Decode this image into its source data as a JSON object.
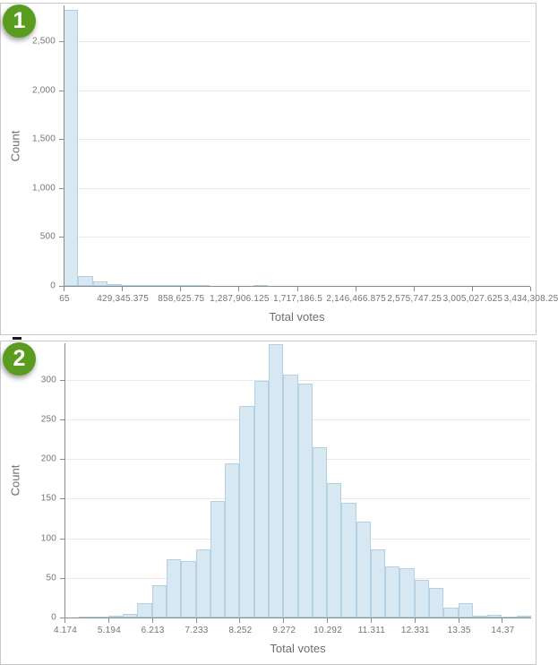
{
  "badges": [
    {
      "label": "1"
    },
    {
      "label": "2"
    }
  ],
  "artifact": {
    "dash": true
  },
  "colors": {
    "badge_green": "#5a9c1e",
    "bar_fill": "#d8e8f3",
    "bar_stroke": "#b4d1e4",
    "axis": "#8c8c8c",
    "grid": "#e9e9e9",
    "tick_text": "#757575",
    "title_text": "#6e6e6e",
    "panel_border": "#c9c9c9"
  },
  "chart_data": [
    {
      "type": "bar",
      "title": "",
      "xlabel": "Total votes",
      "ylabel": "Count",
      "x_start_value": 65,
      "bin_width_value": 107320.094,
      "x_tick_labels": [
        "65",
        "429,345.375",
        "858,625.75",
        "1,287,906.125",
        "1,717,186.5",
        "2,146,466.875",
        "2,575,747.25",
        "3,005,027.625",
        "3,434,308.25"
      ],
      "ticks_every_n_bins": 4,
      "y_tick_values": [
        0,
        500,
        1000,
        1500,
        2000,
        2500
      ],
      "y_tick_labels": [
        "0",
        "500",
        "1,000",
        "1,500",
        "2,000",
        "2,500"
      ],
      "ylim": [
        0,
        2870
      ],
      "grid": "horizontal",
      "legend": "none",
      "counts": [
        2820,
        99,
        47,
        18,
        6,
        3,
        2,
        2,
        1,
        1,
        0,
        0,
        0,
        1,
        0,
        0,
        0,
        0,
        0,
        0,
        0,
        0,
        0,
        0,
        0,
        0,
        0,
        0,
        0,
        0,
        0,
        0
      ]
    },
    {
      "type": "bar",
      "title": "",
      "xlabel": "Total votes",
      "ylabel": "Count",
      "x_start_value": 4.174,
      "bin_width_value": 0.3398,
      "x_tick_labels": [
        "4.174",
        "5.194",
        "6.213",
        "7.233",
        "8.252",
        "9.272",
        "10.292",
        "11.311",
        "12.331",
        "13.35",
        "14.37"
      ],
      "ticks_every_n_bins": 3,
      "y_tick_values": [
        0,
        50,
        100,
        150,
        200,
        250,
        300
      ],
      "y_tick_labels": [
        "0",
        "50",
        "100",
        "150",
        "200",
        "250",
        "300"
      ],
      "ylim": [
        0,
        346
      ],
      "grid": "horizontal",
      "legend": "none",
      "counts": [
        0,
        1,
        1,
        2,
        4,
        18,
        41,
        73,
        71,
        86,
        147,
        195,
        267,
        299,
        345,
        306,
        295,
        215,
        170,
        145,
        121,
        86,
        64,
        62,
        48,
        37,
        12,
        18,
        2,
        3,
        1,
        2
      ]
    }
  ]
}
